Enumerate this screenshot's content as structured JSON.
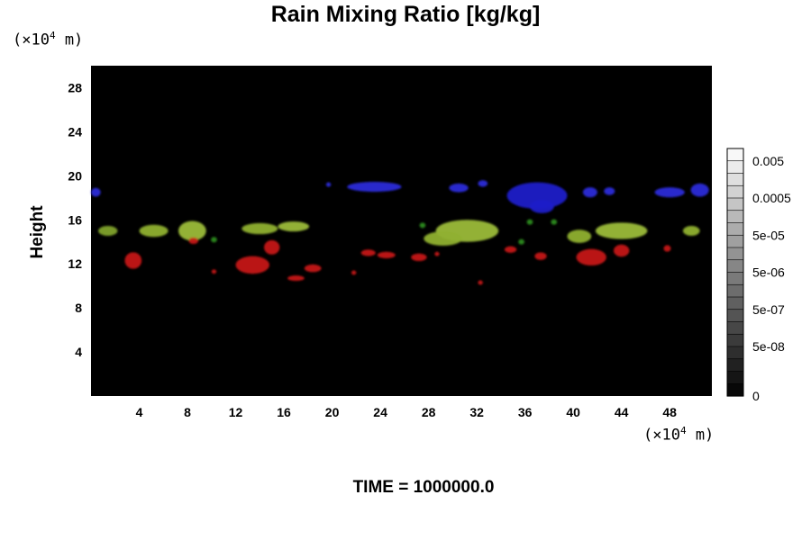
{
  "chart_data": {
    "type": "heatmap",
    "title": "Rain Mixing Ratio [kg/kg]",
    "ylabel": "Height",
    "y_unit": {
      "base": "(×10",
      "exp": "4",
      "rest": " m)"
    },
    "x_unit": {
      "base": "(×10",
      "exp": "4",
      "rest": " m)"
    },
    "footer": "TIME = 1000000.0",
    "xlim": [
      0,
      51.5
    ],
    "ylim": [
      0,
      30
    ],
    "x_ticks": [
      4,
      8,
      12,
      16,
      20,
      24,
      28,
      32,
      36,
      40,
      44,
      48
    ],
    "y_ticks": [
      4,
      8,
      12,
      16,
      20,
      24,
      28
    ],
    "colorbar": {
      "levels": 20,
      "labels": [
        "0.005",
        "0.0005",
        "5e-05",
        "5e-06",
        "5e-07",
        "5e-08",
        "0"
      ]
    },
    "features": [
      {
        "group": "blue",
        "color": "#2a2ad8",
        "x": 0.4,
        "y": 18.5,
        "w": 0.8,
        "h": 0.8
      },
      {
        "group": "blue",
        "color": "#2a2ad8",
        "x": 23.5,
        "y": 19.0,
        "w": 4.5,
        "h": 0.9
      },
      {
        "group": "blue",
        "color": "#2a2ad8",
        "x": 30.5,
        "y": 18.9,
        "w": 1.6,
        "h": 0.8
      },
      {
        "group": "blue",
        "color": "#2a2ad8",
        "x": 32.5,
        "y": 19.3,
        "w": 0.8,
        "h": 0.6
      },
      {
        "group": "blue",
        "color": "#2020c8",
        "x": 37.0,
        "y": 18.2,
        "w": 5.0,
        "h": 2.4
      },
      {
        "group": "blue",
        "color": "#2020c8",
        "x": 37.4,
        "y": 17.2,
        "w": 2.0,
        "h": 1.2
      },
      {
        "group": "blue",
        "color": "#2a2ad8",
        "x": 41.4,
        "y": 18.5,
        "w": 1.2,
        "h": 0.9
      },
      {
        "group": "blue",
        "color": "#2a2ad8",
        "x": 43.0,
        "y": 18.6,
        "w": 0.9,
        "h": 0.7
      },
      {
        "group": "blue",
        "color": "#2a2ad8",
        "x": 48.0,
        "y": 18.5,
        "w": 2.5,
        "h": 0.9
      },
      {
        "group": "blue",
        "color": "#2a2ad8",
        "x": 50.5,
        "y": 18.7,
        "w": 1.5,
        "h": 1.2
      },
      {
        "group": "blue",
        "color": "#2a2ad8",
        "x": 19.7,
        "y": 19.2,
        "w": 0.4,
        "h": 0.4
      },
      {
        "group": "green",
        "color": "#7fa22a",
        "x": 1.4,
        "y": 15.0,
        "w": 1.6,
        "h": 0.9
      },
      {
        "group": "green",
        "color": "#8fb030",
        "x": 5.2,
        "y": 15.0,
        "w": 2.4,
        "h": 1.1
      },
      {
        "group": "green",
        "color": "#9bba38",
        "x": 8.4,
        "y": 15.0,
        "w": 2.3,
        "h": 1.8
      },
      {
        "group": "green",
        "color": "#2c8a20",
        "x": 10.2,
        "y": 14.2,
        "w": 0.5,
        "h": 0.5
      },
      {
        "group": "green",
        "color": "#8fb030",
        "x": 14.0,
        "y": 15.2,
        "w": 3.0,
        "h": 1.0
      },
      {
        "group": "green",
        "color": "#9bba38",
        "x": 16.8,
        "y": 15.4,
        "w": 2.6,
        "h": 0.9
      },
      {
        "group": "green",
        "color": "#9bba38",
        "x": 31.2,
        "y": 15.0,
        "w": 5.2,
        "h": 2.0
      },
      {
        "group": "green",
        "color": "#8fb030",
        "x": 29.2,
        "y": 14.3,
        "w": 3.2,
        "h": 1.3
      },
      {
        "group": "green",
        "color": "#2c8a20",
        "x": 27.5,
        "y": 15.5,
        "w": 0.5,
        "h": 0.5
      },
      {
        "group": "green",
        "color": "#2c8a20",
        "x": 35.7,
        "y": 14.0,
        "w": 0.5,
        "h": 0.5
      },
      {
        "group": "green",
        "color": "#2c8a20",
        "x": 36.4,
        "y": 15.8,
        "w": 0.5,
        "h": 0.5
      },
      {
        "group": "green",
        "color": "#8fb030",
        "x": 40.5,
        "y": 14.5,
        "w": 2.0,
        "h": 1.2
      },
      {
        "group": "green",
        "color": "#9bba38",
        "x": 44.0,
        "y": 15.0,
        "w": 4.3,
        "h": 1.5
      },
      {
        "group": "green",
        "color": "#2c8a20",
        "x": 38.4,
        "y": 15.8,
        "w": 0.5,
        "h": 0.5
      },
      {
        "group": "green",
        "color": "#8fb030",
        "x": 49.8,
        "y": 15.0,
        "w": 1.4,
        "h": 0.9
      },
      {
        "group": "red",
        "color": "#c41818",
        "x": 3.5,
        "y": 12.3,
        "w": 1.4,
        "h": 1.5
      },
      {
        "group": "red",
        "color": "#c41818",
        "x": 8.5,
        "y": 14.1,
        "w": 0.8,
        "h": 0.6
      },
      {
        "group": "red",
        "color": "#c41818",
        "x": 13.4,
        "y": 11.9,
        "w": 2.8,
        "h": 1.6
      },
      {
        "group": "red",
        "color": "#c41818",
        "x": 15.0,
        "y": 13.5,
        "w": 1.3,
        "h": 1.3
      },
      {
        "group": "red",
        "color": "#c41818",
        "x": 17.0,
        "y": 10.7,
        "w": 1.4,
        "h": 0.5
      },
      {
        "group": "red",
        "color": "#c41818",
        "x": 18.4,
        "y": 11.6,
        "w": 1.4,
        "h": 0.7
      },
      {
        "group": "red",
        "color": "#c41818",
        "x": 10.2,
        "y": 11.3,
        "w": 0.4,
        "h": 0.4
      },
      {
        "group": "red",
        "color": "#c41818",
        "x": 21.8,
        "y": 11.2,
        "w": 0.4,
        "h": 0.4
      },
      {
        "group": "red",
        "color": "#c41818",
        "x": 23.0,
        "y": 13.0,
        "w": 1.2,
        "h": 0.6
      },
      {
        "group": "red",
        "color": "#c41818",
        "x": 24.5,
        "y": 12.8,
        "w": 1.5,
        "h": 0.6
      },
      {
        "group": "red",
        "color": "#c41818",
        "x": 27.2,
        "y": 12.6,
        "w": 1.3,
        "h": 0.7
      },
      {
        "group": "red",
        "color": "#c41818",
        "x": 28.7,
        "y": 12.9,
        "w": 0.4,
        "h": 0.4
      },
      {
        "group": "red",
        "color": "#c41818",
        "x": 32.3,
        "y": 10.3,
        "w": 0.4,
        "h": 0.4
      },
      {
        "group": "red",
        "color": "#c41818",
        "x": 34.8,
        "y": 13.3,
        "w": 1.0,
        "h": 0.6
      },
      {
        "group": "red",
        "color": "#c41818",
        "x": 37.3,
        "y": 12.7,
        "w": 1.0,
        "h": 0.7
      },
      {
        "group": "red",
        "color": "#c41818",
        "x": 41.5,
        "y": 12.6,
        "w": 2.5,
        "h": 1.5
      },
      {
        "group": "red",
        "color": "#c41818",
        "x": 44.0,
        "y": 13.2,
        "w": 1.3,
        "h": 1.1
      },
      {
        "group": "red",
        "color": "#c41818",
        "x": 47.8,
        "y": 13.4,
        "w": 0.6,
        "h": 0.6
      }
    ]
  },
  "colors": {
    "background": "#000000",
    "blue": "#2a2ad8",
    "green": "#9bba38",
    "red": "#c41818"
  }
}
